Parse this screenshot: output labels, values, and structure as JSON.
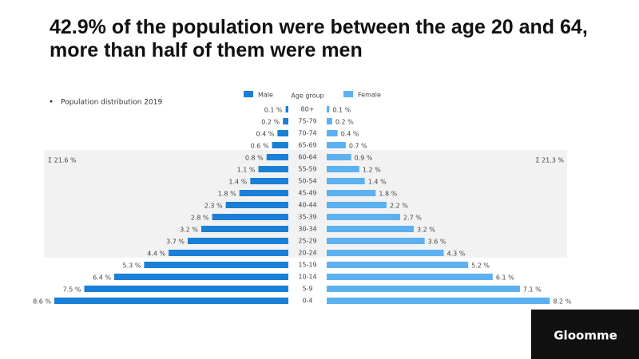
{
  "chart_data": {
    "type": "population-pyramid",
    "title": "42.9% of the population were between the age 20 and 64, more than half of them were men",
    "subtitle": "Population distribution 2019",
    "category_label": "Age group",
    "categories": [
      "80+",
      "75-79",
      "70-74",
      "65-69",
      "60-64",
      "55-59",
      "50-54",
      "45-49",
      "40-44",
      "35-39",
      "30-34",
      "25-29",
      "20-24",
      "15-19",
      "10-14",
      "5-9",
      "0-4"
    ],
    "series": [
      {
        "name": "Male",
        "color": "#1a7fd6",
        "values": [
          0.1,
          0.2,
          0.4,
          0.6,
          0.8,
          1.1,
          1.4,
          1.8,
          2.3,
          2.8,
          3.2,
          3.7,
          4.4,
          5.3,
          6.4,
          7.5,
          8.6
        ],
        "value_labels": [
          "0.1 %",
          "0.2 %",
          "0.4 %",
          "0.6 %",
          "0.8 %",
          "1.1 %",
          "1.4 %",
          "1.8 %",
          "2.3 %",
          "2.8 %",
          "3.2 %",
          "3.7 %",
          "4.4 %",
          "5.3 %",
          "6.4 %",
          "7.5 %",
          "8.6 %"
        ]
      },
      {
        "name": "Female",
        "color": "#5cb1f0",
        "values": [
          0.1,
          0.2,
          0.4,
          0.7,
          0.9,
          1.2,
          1.4,
          1.8,
          2.2,
          2.7,
          3.2,
          3.6,
          4.3,
          5.2,
          6.1,
          7.1,
          8.2
        ],
        "value_labels": [
          "0.1 %",
          "0.2 %",
          "0.4 %",
          "0.7 %",
          "0.9 %",
          "1.2 %",
          "1.4 %",
          "1.8 %",
          "2.2 %",
          "2.7 %",
          "3.2 %",
          "3.6 %",
          "4.3 %",
          "5.2 %",
          "6.1 %",
          "7.1 %",
          "8.2 %"
        ]
      }
    ],
    "annotations": [
      "Σ 21.6 %",
      "Σ 21.3 %"
    ]
  },
  "branding": {
    "logo": "Gloomme"
  }
}
